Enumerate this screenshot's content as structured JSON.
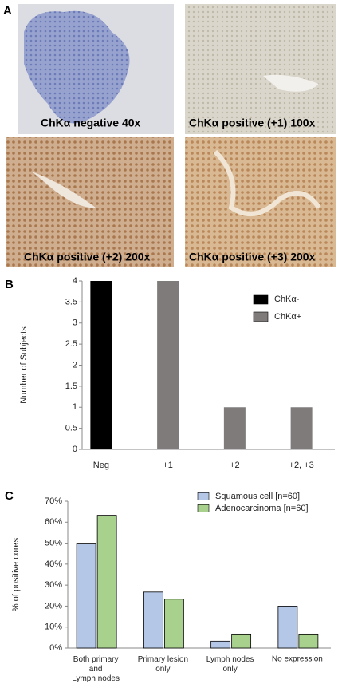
{
  "panel_labels": [
    "A",
    "B",
    "C"
  ],
  "images": [
    {
      "caption": "ChKα negative 40x"
    },
    {
      "caption": "ChKα positive (+1) 100x"
    },
    {
      "caption": "ChKα positive (+2) 200x"
    },
    {
      "caption": "ChKα positive (+3) 200x"
    }
  ],
  "chart_data": [
    {
      "type": "bar",
      "ylabel": "Number of Subjects",
      "categories": [
        "Neg",
        "+1",
        "+2",
        "+2, +3"
      ],
      "series": [
        {
          "name": "ChKα-",
          "color": "#000000",
          "values": [
            4,
            null,
            null,
            null
          ]
        },
        {
          "name": "ChKα+",
          "color": "#7f7b7b",
          "values": [
            null,
            4,
            1,
            1
          ]
        }
      ],
      "ylim": [
        0,
        4
      ],
      "yticks": [
        0,
        0.5,
        1,
        1.5,
        2,
        2.5,
        3,
        3.5,
        4
      ],
      "legend": "top-right"
    },
    {
      "type": "grouped-bar",
      "ylabel": "% of positive cores",
      "categories": [
        "Both primary\nand\nLymph nodes",
        "Primary lesion\nonly",
        "Lymph nodes\nonly",
        "No expression"
      ],
      "series": [
        {
          "name": "Squamous cell [n=60]",
          "color": "#b4c7e7",
          "values": [
            50,
            26.7,
            3.3,
            20
          ]
        },
        {
          "name": "Adenocarcinoma [n=60]",
          "color": "#a9d18e",
          "values": [
            63.3,
            23.3,
            6.7,
            6.7
          ]
        }
      ],
      "ylim": [
        0,
        70
      ],
      "yticks": [
        {
          "value": 0,
          "label": "0%"
        },
        {
          "value": 10,
          "label": "10%"
        },
        {
          "value": 20,
          "label": "20%"
        },
        {
          "value": 30,
          "label": "30%"
        },
        {
          "value": 40,
          "label": "40%"
        },
        {
          "value": 50,
          "label": "50%"
        },
        {
          "value": 60,
          "label": "60%"
        },
        {
          "value": 70,
          "label": "70%"
        }
      ],
      "legend": "top-right"
    }
  ]
}
